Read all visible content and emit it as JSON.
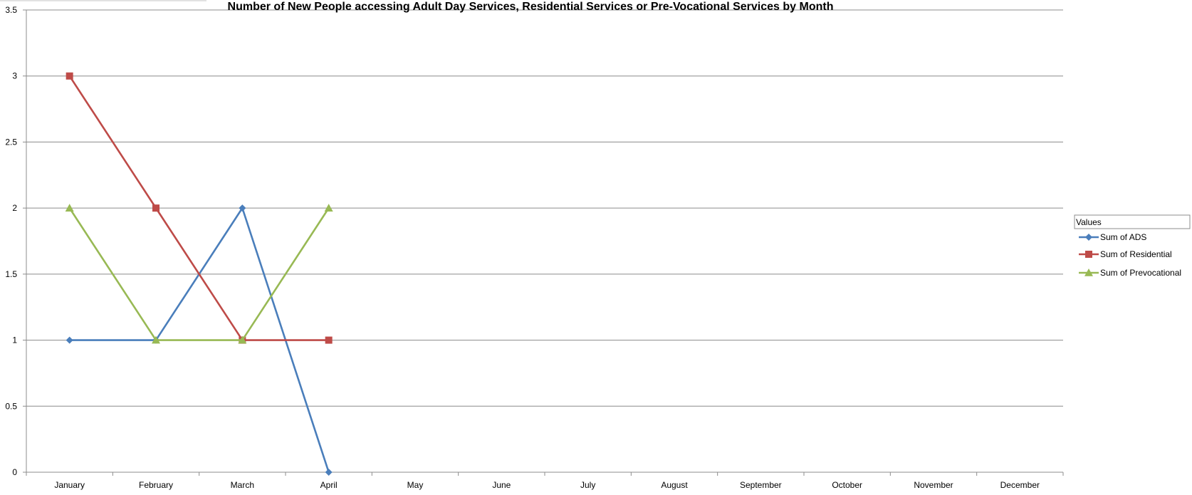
{
  "chart_data": {
    "type": "line",
    "title": "Number of New People accessing Adult Day Services, Residential Services or Pre-Vocational Services by Month",
    "xlabel": "",
    "ylabel": "",
    "categories": [
      "January",
      "February",
      "March",
      "April",
      "May",
      "June",
      "July",
      "August",
      "September",
      "October",
      "November",
      "December"
    ],
    "ylim": [
      0,
      3.5
    ],
    "yticks": [
      0,
      0.5,
      1,
      1.5,
      2,
      2.5,
      3,
      3.5
    ],
    "ytick_labels": [
      "0",
      "0.5",
      "1",
      "1.5",
      "2",
      "2.5",
      "3",
      "3.5"
    ],
    "grid": true,
    "legend": {
      "title": "Values",
      "position": "right"
    },
    "series": [
      {
        "name": "Sum of ADS",
        "color": "#4a7ebb",
        "marker": "diamond",
        "values": [
          1,
          1,
          2,
          0,
          null,
          null,
          null,
          null,
          null,
          null,
          null,
          null
        ]
      },
      {
        "name": "Sum of Residential",
        "color": "#be4b48",
        "marker": "square",
        "values": [
          3,
          2,
          1,
          1,
          null,
          null,
          null,
          null,
          null,
          null,
          null,
          null
        ]
      },
      {
        "name": "Sum of Prevocational",
        "color": "#98b954",
        "marker": "triangle",
        "values": [
          2,
          1,
          1,
          2,
          null,
          null,
          null,
          null,
          null,
          null,
          null,
          null
        ]
      }
    ]
  }
}
